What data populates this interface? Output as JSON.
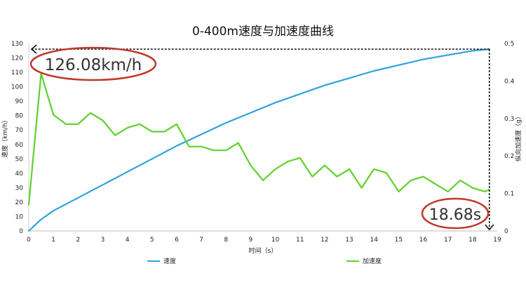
{
  "chart_data": {
    "type": "line",
    "title": "0-400m速度与加速度曲线",
    "xlabel": "时间（s）",
    "ylabel_left": "速度（km/h）",
    "ylabel_right": "纵向加速度（g）",
    "xlim": [
      0,
      19
    ],
    "ylim_left": [
      0,
      130
    ],
    "ylim_right": [
      0,
      0.5
    ],
    "x_ticks": [
      "0",
      "1",
      "2",
      "3",
      "4",
      "5",
      "6",
      "7",
      "8",
      "9",
      "10",
      "11",
      "12",
      "13",
      "14",
      "15",
      "16",
      "17",
      "18",
      "19"
    ],
    "y_left_ticks": [
      "0",
      "10",
      "20",
      "30",
      "40",
      "50",
      "60",
      "70",
      "80",
      "90",
      "100",
      "110",
      "120",
      "130"
    ],
    "y_right_ticks": [
      "0",
      "0.1",
      "0.2",
      "0.3",
      "0.4",
      "0.5"
    ],
    "grid": false,
    "legend_position": "bottom",
    "series": [
      {
        "name": "速度",
        "axis": "left",
        "color": "#2ea3dd",
        "x": [
          0,
          0.5,
          1,
          2,
          3,
          4,
          5,
          6,
          7,
          8,
          9,
          10,
          11,
          12,
          13,
          14,
          15,
          16,
          17,
          18,
          18.68
        ],
        "y": [
          0,
          8,
          14,
          23,
          32,
          41,
          50,
          59,
          67,
          75,
          82,
          89,
          95,
          101,
          106,
          111,
          115,
          119,
          122,
          125,
          126.08
        ]
      },
      {
        "name": "加速度",
        "axis": "right",
        "color": "#5fd12e",
        "x": [
          0,
          0.5,
          1,
          1.5,
          2,
          2.5,
          3,
          3.5,
          4,
          4.5,
          5,
          5.5,
          6,
          6.5,
          7,
          7.5,
          8,
          8.5,
          9,
          9.5,
          10,
          10.5,
          11,
          11.5,
          12,
          12.5,
          13,
          13.5,
          14,
          14.5,
          15,
          15.5,
          16,
          16.5,
          17,
          17.5,
          18,
          18.5,
          18.68
        ],
        "y": [
          0.07,
          0.42,
          0.31,
          0.285,
          0.285,
          0.315,
          0.295,
          0.255,
          0.275,
          0.285,
          0.265,
          0.265,
          0.285,
          0.225,
          0.225,
          0.215,
          0.215,
          0.235,
          0.175,
          0.135,
          0.165,
          0.185,
          0.195,
          0.145,
          0.175,
          0.145,
          0.165,
          0.115,
          0.165,
          0.155,
          0.105,
          0.135,
          0.145,
          0.125,
          0.105,
          0.135,
          0.115,
          0.105,
          0.11
        ]
      }
    ],
    "annotations": [
      {
        "text": "126.08km/h",
        "color": "#c0392b"
      },
      {
        "text": "18.68s",
        "color": "#c0392b"
      }
    ]
  }
}
